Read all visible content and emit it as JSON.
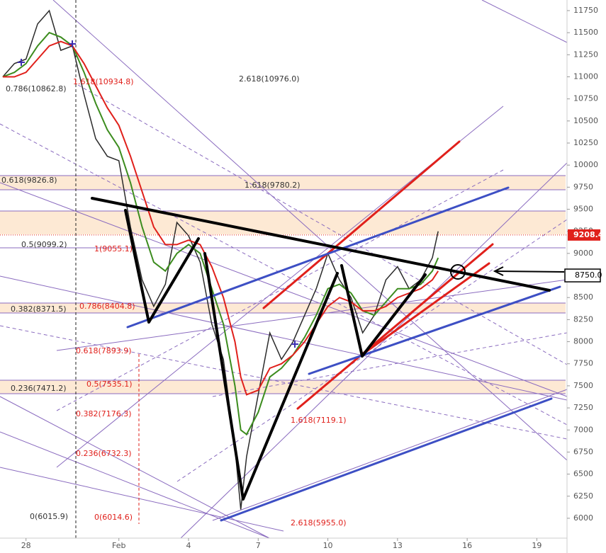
{
  "chart_data": {
    "type": "line",
    "x": [
      -1,
      -0.5,
      0,
      0.5,
      1,
      1.5,
      2,
      2.5,
      3,
      3.5,
      4,
      4.5,
      5,
      5.5,
      6,
      6.5,
      7,
      7.5,
      8,
      8.5,
      9,
      9.25,
      9.5,
      10,
      10.5,
      11,
      11.5,
      12,
      12.5,
      13,
      13.5,
      14,
      14.5,
      15,
      15.5,
      16,
      16.5,
      17,
      17.5,
      17.75
    ],
    "series": [
      {
        "color": "#2b2b2b",
        "values": [
          11000,
          11150,
          11200,
          11600,
          11750,
          11300,
          11350,
          10800,
          10300,
          10100,
          10050,
          9300,
          8700,
          8400,
          8650,
          9350,
          9200,
          8900,
          8200,
          7800,
          6800,
          6100,
          6700,
          7400,
          8100,
          7800,
          8000,
          8300,
          8600,
          9000,
          8700,
          8500,
          8100,
          8300,
          8700,
          8850,
          8600,
          8700,
          8950,
          9250
        ]
      },
      {
        "color": "#3c8c1e",
        "values": [
          11000,
          11050,
          11150,
          11350,
          11500,
          11450,
          11350,
          11050,
          10700,
          10400,
          10200,
          9800,
          9300,
          8900,
          8800,
          9000,
          9100,
          9000,
          8600,
          8200,
          7500,
          7000,
          6950,
          7200,
          7600,
          7700,
          7850,
          8050,
          8300,
          8600,
          8650,
          8550,
          8350,
          8300,
          8450,
          8600,
          8600,
          8650,
          8800,
          8950
        ]
      },
      {
        "color": "#e0201b",
        "values": [
          11000,
          11000,
          11050,
          11200,
          11350,
          11400,
          11350,
          11150,
          10900,
          10650,
          10450,
          10100,
          9700,
          9300,
          9100,
          9100,
          9150,
          9100,
          8850,
          8500,
          8000,
          7600,
          7400,
          7450,
          7700,
          7750,
          7850,
          8000,
          8200,
          8400,
          8500,
          8450,
          8350,
          8350,
          8400,
          8500,
          8550,
          8600,
          8700,
          8800
        ]
      }
    ],
    "xlim": [
      -1.12,
      23.3
    ],
    "xticks": [
      {
        "value": 0,
        "label": "28"
      },
      {
        "value": 4,
        "label": "Feb"
      },
      {
        "value": 7,
        "label": "4"
      },
      {
        "value": 10,
        "label": "7"
      },
      {
        "value": 13,
        "label": "10"
      },
      {
        "value": 16,
        "label": "13"
      },
      {
        "value": 19,
        "label": "16"
      },
      {
        "value": 22,
        "label": "19"
      }
    ],
    "ylim": [
      5775,
      11870
    ],
    "yticks": [
      6000,
      6250,
      6500,
      6750,
      7000,
      7250,
      7500,
      7750,
      8000,
      8250,
      8500,
      8750,
      9000,
      9250,
      9500,
      9750,
      10000,
      10250,
      10500,
      10750,
      11000,
      11250,
      11500,
      11750
    ],
    "last_price": 9208.4,
    "marker": {
      "value": 8750,
      "label": "8750.0"
    },
    "annotations": [
      {
        "text": "0.786(10862.8)",
        "color": "#333333"
      },
      {
        "text": "1.618(10934.8)",
        "color": "#e0201b"
      },
      {
        "text": "2.618(10976.0)",
        "color": "#333333"
      },
      {
        "text": "0.618(9826.8)",
        "color": "#333333"
      },
      {
        "text": "1.618(9780.2)",
        "color": "#333333"
      },
      {
        "text": "0.5(9099.2)",
        "color": "#333333"
      },
      {
        "text": "1(9055.1)",
        "color": "#e0201b"
      },
      {
        "text": "0.382(8371.5)",
        "color": "#333333"
      },
      {
        "text": "0.786(8404.8)",
        "color": "#e0201b"
      },
      {
        "text": "0.618(7893.9)",
        "color": "#e0201b"
      },
      {
        "text": "0.236(7471.2)",
        "color": "#333333"
      },
      {
        "text": "0.5(7535.1)",
        "color": "#e0201b"
      },
      {
        "text": "0.382(7176.3)",
        "color": "#e0201b"
      },
      {
        "text": "1.618(7119.1)",
        "color": "#e0201b"
      },
      {
        "text": "0.236(6732.3)",
        "color": "#e0201b"
      },
      {
        "text": "0(6015.9)",
        "color": "#333333"
      },
      {
        "text": "0(6014.6)",
        "color": "#e0201b"
      },
      {
        "text": "2.618(5955.0)",
        "color": "#e0201b"
      }
    ]
  }
}
